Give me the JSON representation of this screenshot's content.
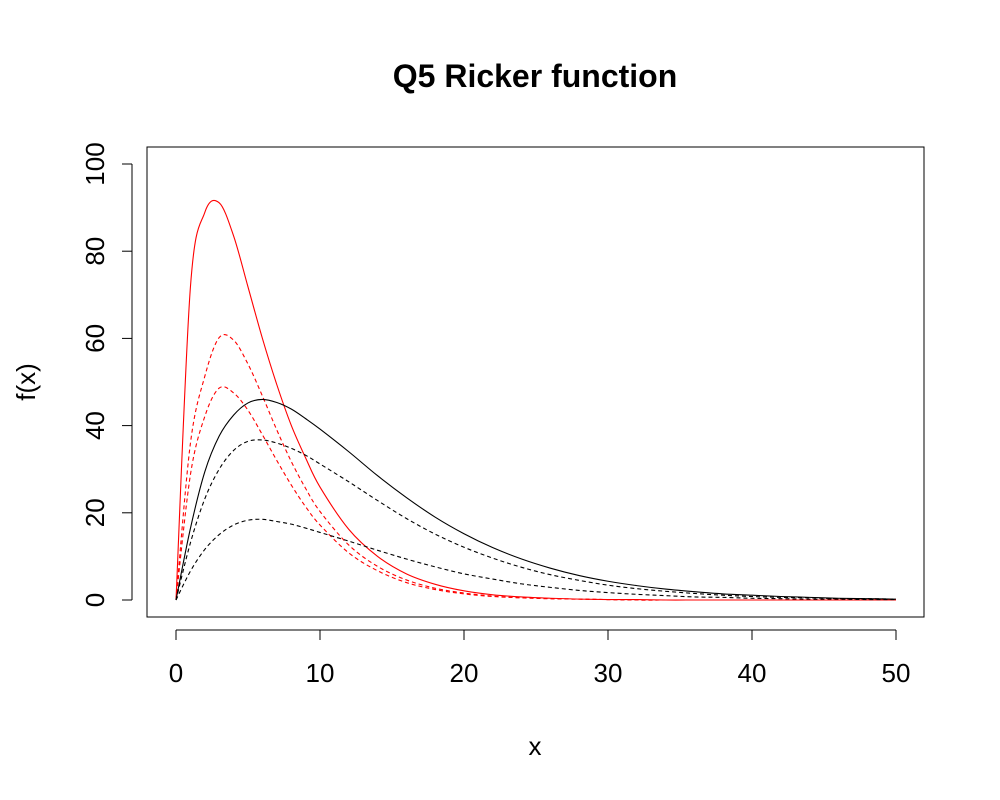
{
  "chart_data": {
    "type": "line",
    "title": "Q5 Ricker function",
    "xlabel": "x",
    "ylabel": "f(x)",
    "xlim": [
      0,
      50
    ],
    "ylim": [
      0,
      100
    ],
    "x_ticks": [
      0,
      10,
      20,
      30,
      40,
      50
    ],
    "y_ticks": [
      0,
      20,
      40,
      60,
      80,
      100
    ],
    "x_tick_labels": [
      "0",
      "10",
      "20",
      "30",
      "40",
      "50"
    ],
    "y_tick_labels": [
      "0",
      "20",
      "40",
      "60",
      "80",
      "100"
    ],
    "grid": false,
    "legend": false,
    "x": [
      0,
      1,
      2,
      3,
      4,
      5,
      6,
      7,
      8,
      9,
      10,
      12,
      14,
      16,
      18,
      20,
      22,
      24,
      26,
      28,
      30,
      32,
      34,
      36,
      38,
      40,
      42,
      44,
      46,
      48,
      50
    ],
    "series": [
      {
        "color": "#ff0000",
        "dash": "solid",
        "values": [
          0,
          71.7,
          88.9,
          91.1,
          83.5,
          71.8,
          60.0,
          49.4,
          40.1,
          32.6,
          25.9,
          16.2,
          10.0,
          6.0,
          3.6,
          2.1,
          1.2,
          0.7,
          0.4,
          0.2,
          0.1,
          0.1,
          0.0,
          0.0,
          0.0,
          0.0,
          0.0,
          0.0,
          0.0,
          0.0,
          0.0
        ]
      },
      {
        "color": "#ff0000",
        "dash": "dashed",
        "values": [
          0,
          35.9,
          51.3,
          60.2,
          59.6,
          54.1,
          46.8,
          39.0,
          31.8,
          25.6,
          20.3,
          12.6,
          7.7,
          4.6,
          2.7,
          1.6,
          0.9,
          0.5,
          0.3,
          0.2,
          0.1,
          0.0,
          0.0,
          0.0,
          0.0,
          0.0,
          0.0,
          0.0,
          0.0,
          0.0,
          0.0
        ]
      },
      {
        "color": "#ff0000",
        "dash": "dashed",
        "values": [
          0,
          28.7,
          42.1,
          48.6,
          47.5,
          43.5,
          37.9,
          32.0,
          26.4,
          21.4,
          17.2,
          10.8,
          6.7,
          4.0,
          2.4,
          1.4,
          0.8,
          0.5,
          0.3,
          0.2,
          0.1,
          0.0,
          0.0,
          0.0,
          0.0,
          0.0,
          0.0,
          0.0,
          0.0,
          0.0,
          0.0
        ]
      },
      {
        "color": "#000000",
        "dash": "solid",
        "values": [
          0,
          16.4,
          29.4,
          37.6,
          42.4,
          45.2,
          46.0,
          45.3,
          43.8,
          41.6,
          39.2,
          34.0,
          28.5,
          23.5,
          19.0,
          15.2,
          12.0,
          9.4,
          7.3,
          5.6,
          4.3,
          3.3,
          2.5,
          1.9,
          1.4,
          1.1,
          0.8,
          0.6,
          0.4,
          0.3,
          0.2
        ]
      },
      {
        "color": "#000000",
        "dash": "dashed",
        "values": [
          0,
          13.1,
          23.2,
          30.0,
          34.3,
          36.4,
          36.7,
          36.0,
          34.8,
          33.2,
          31.2,
          27.1,
          22.8,
          18.7,
          15.1,
          12.1,
          9.6,
          7.5,
          5.8,
          4.5,
          3.4,
          2.6,
          2.0,
          1.5,
          1.1,
          0.8,
          0.6,
          0.5,
          0.3,
          0.3,
          0.2
        ]
      },
      {
        "color": "#000000",
        "dash": "dashed",
        "values": [
          0,
          6.6,
          11.6,
          15.0,
          17.2,
          18.3,
          18.5,
          18.0,
          17.4,
          16.5,
          15.5,
          13.5,
          11.4,
          9.4,
          7.6,
          6.0,
          4.8,
          3.7,
          2.9,
          2.2,
          1.7,
          1.3,
          1.0,
          0.7,
          0.6,
          0.4,
          0.3,
          0.2,
          0.2,
          0.1,
          0.1
        ]
      }
    ]
  }
}
